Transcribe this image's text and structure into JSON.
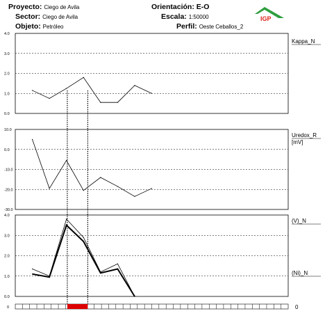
{
  "header": {
    "proyecto_label": "Proyecto:",
    "proyecto_value": "Ciego de Avila",
    "sector_label": "Sector:",
    "sector_value": "Ciego de Avila",
    "objeto_label": "Objeto:",
    "objeto_value": "Petróleo",
    "orientacion_label": "Orientación:",
    "orientacion_value": "E-O",
    "escala_label": "Escala:",
    "escala_value": "1:50000",
    "perfil_label": "Perfil:",
    "perfil_value": "Oeste Ceballos_2"
  },
  "logo": {
    "text": "IGP",
    "colors": {
      "roof": "#2e9e3e",
      "text": "#e0251b"
    }
  },
  "chart_data": [
    {
      "type": "line",
      "panel": "kappa",
      "ylim": [
        0,
        4
      ],
      "yticks": [
        "4.0",
        "3.0",
        "2.0",
        "1.0",
        "0.0"
      ],
      "grid": "dashed",
      "series": [
        {
          "name": "Kappa_N",
          "x": [
            1,
            2,
            3,
            4,
            5,
            6,
            7,
            8
          ],
          "values": [
            1.15,
            0.75,
            1.25,
            1.8,
            0.55,
            0.55,
            1.4,
            1.0
          ]
        }
      ]
    },
    {
      "type": "line",
      "panel": "uredox",
      "ylim": [
        -30,
        10
      ],
      "yticks": [
        "10.0",
        "0.0",
        "-10.0",
        "-20.0",
        "-30.0"
      ],
      "grid": "dashed",
      "series": [
        {
          "name": "Uredox_R",
          "unit": "[mV]",
          "x": [
            1,
            2,
            3,
            4,
            5,
            6,
            7,
            8
          ],
          "values": [
            5.0,
            -19.5,
            -5.5,
            -20.5,
            -14.0,
            -18.5,
            -23.5,
            -19.5
          ]
        }
      ]
    },
    {
      "type": "line",
      "panel": "v_ni",
      "ylim": [
        0,
        4
      ],
      "yticks": [
        "4.0",
        "3.0",
        "2.0",
        "1.0",
        "0.0"
      ],
      "grid": "dashed",
      "series": [
        {
          "name": "(V)_N",
          "x": [
            1,
            2,
            3,
            4,
            5,
            6,
            7,
            8
          ],
          "values": [
            1.1,
            0.95,
            3.5,
            2.7,
            1.15,
            1.35,
            0.0,
            null
          ]
        },
        {
          "name": "(Ni)_N",
          "x": [
            1,
            2,
            3,
            4,
            5,
            6,
            7,
            8
          ],
          "values": [
            1.35,
            1.0,
            3.8,
            2.9,
            1.2,
            1.6,
            0.0,
            null
          ]
        }
      ]
    }
  ],
  "anomaly": {
    "x_start": 3.05,
    "x_end": 4.25,
    "color": "#dd0000"
  },
  "baseline": {
    "left_label": "0",
    "right_label": "0",
    "segments": 38
  }
}
